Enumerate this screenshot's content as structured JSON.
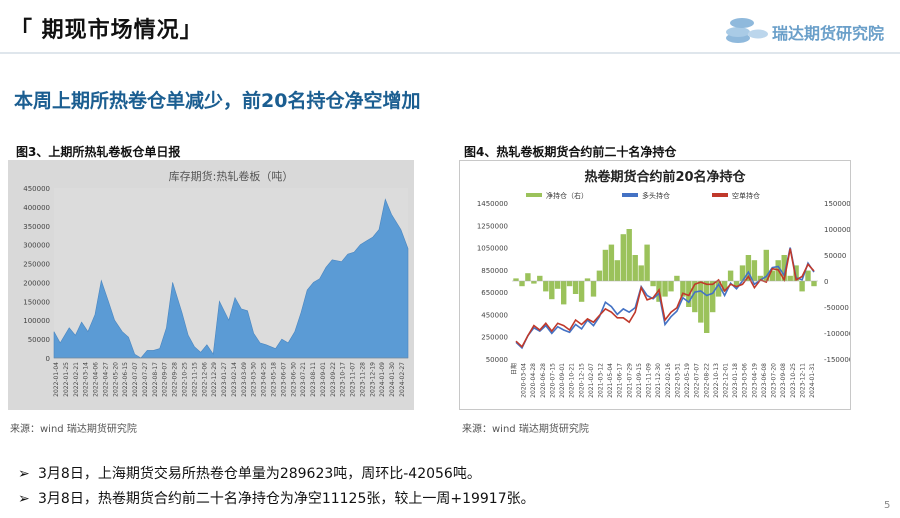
{
  "slide": {
    "title": "「 期现市场情况」",
    "logo_text": "瑞达期货研究院",
    "headline": "本周上期所热卷仓单减少，前20名持仓净空增加",
    "page_number": "5"
  },
  "figures": {
    "left": {
      "caption": "图3、上期所热轧卷板仓单日报",
      "source": "来源：wind   瑞达期货研究院"
    },
    "right": {
      "caption": "图4、热轧卷板期货合约前二十名净持仓",
      "source": "来源：wind   瑞达期货研究院"
    }
  },
  "bullets": [
    {
      "marker": "➢",
      "text": "3月8日，上海期货交易所热卷仓单量为289623吨，周环比-42056吨。"
    },
    {
      "marker": "➢",
      "text": "3月8日，热卷期货合约前二十名净持仓为净空11125张，较上一周+19917张。"
    }
  ],
  "colors": {
    "headline": "#1b5e91",
    "area_fill": "#5b9bd5",
    "net_bar": "#9bc25b",
    "long_line": "#4472c4",
    "short_line": "#c0392b"
  },
  "chart_data": [
    {
      "type": "area",
      "title": "库存期货:热轧卷板（吨）",
      "ylim": [
        0,
        450000
      ],
      "yticks": [
        0,
        50000,
        100000,
        150000,
        200000,
        250000,
        300000,
        350000,
        400000,
        450000
      ],
      "xticks": [
        "2022-01-04",
        "2022-01-25",
        "2022-02-21",
        "2022-03-14",
        "2022-04-06",
        "2022-04-27",
        "2022-05-20",
        "2022-06-15",
        "2022-07-07",
        "2022-07-27",
        "2022-08-17",
        "2022-09-07",
        "2022-09-28",
        "2022-10-25",
        "2022-11-15",
        "2022-12-06",
        "2022-12-29",
        "2023-01-27",
        "2023-02-14",
        "2023-03-09",
        "2023-03-30",
        "2023-04-25",
        "2023-05-18",
        "2023-06-07",
        "2023-06-30",
        "2023-07-21",
        "2023-08-11",
        "2023-09-01",
        "2023-09-22",
        "2023-10-17",
        "2023-11-07",
        "2023-11-28",
        "2023-12-19",
        "2024-01-09",
        "2024-01-30",
        "2024-02-27"
      ],
      "x": [
        "2022-01-04",
        "2022-01-18",
        "2022-02-07",
        "2022-02-21",
        "2022-03-07",
        "2022-03-21",
        "2022-04-06",
        "2022-04-20",
        "2022-05-06",
        "2022-05-20",
        "2022-06-06",
        "2022-06-20",
        "2022-07-04",
        "2022-07-18",
        "2022-08-01",
        "2022-08-15",
        "2022-08-29",
        "2022-09-13",
        "2022-09-27",
        "2022-10-18",
        "2022-11-01",
        "2022-11-15",
        "2022-11-29",
        "2022-12-13",
        "2022-12-27",
        "2023-01-10",
        "2023-01-31",
        "2023-02-14",
        "2023-02-28",
        "2023-03-14",
        "2023-03-28",
        "2023-04-11",
        "2023-04-25",
        "2023-05-16",
        "2023-05-30",
        "2023-06-13",
        "2023-06-28",
        "2023-07-12",
        "2023-07-26",
        "2023-08-09",
        "2023-08-23",
        "2023-09-06",
        "2023-09-20",
        "2023-10-11",
        "2023-10-25",
        "2023-11-08",
        "2023-11-22",
        "2023-12-06",
        "2023-12-20",
        "2024-01-03",
        "2024-01-17",
        "2024-01-31",
        "2024-02-21",
        "2024-03-08"
      ],
      "values": [
        70000,
        40000,
        80000,
        60000,
        95000,
        70000,
        115000,
        205000,
        150000,
        100000,
        70000,
        55000,
        10000,
        0,
        20000,
        20000,
        25000,
        80000,
        200000,
        120000,
        60000,
        30000,
        15000,
        35000,
        10000,
        150000,
        100000,
        160000,
        130000,
        125000,
        65000,
        40000,
        35000,
        25000,
        50000,
        40000,
        70000,
        120000,
        180000,
        200000,
        210000,
        240000,
        260000,
        255000,
        275000,
        280000,
        300000,
        310000,
        320000,
        340000,
        420000,
        380000,
        340000,
        289623
      ]
    },
    {
      "type": "line",
      "title": "热卷期货合约前20名净持仓",
      "y_left_ticks": [
        50000,
        250000,
        450000,
        650000,
        850000,
        1050000,
        1250000,
        1450000
      ],
      "ylim_left": [
        50000,
        1450000
      ],
      "y_right_ticks": [
        -150000,
        -100000,
        -50000,
        0,
        50000,
        100000,
        150000
      ],
      "ylim_right": [
        -150000,
        150000
      ],
      "xticks": [
        "日期",
        "2020-03-04",
        "2020-04-28",
        "2020-06-28",
        "2020-07-15",
        "2020-09-01",
        "2020-10-21",
        "2020-12-15",
        "2021-02-07",
        "2021-03-12",
        "2021-05-04",
        "2021-06-17",
        "2021-07-29",
        "2021-09-15",
        "2021-11-09",
        "2021-12-30",
        "2022-02-16",
        "2022-03-31",
        "2022-05-19",
        "2022-07-07",
        "2022-08-22",
        "2022-10-13",
        "2022-12-01",
        "2023-01-18",
        "2023-03-06",
        "2023-04-19",
        "2023-06-08",
        "2023-07-20",
        "2023-09-08",
        "2023-10-25",
        "2023-12-11",
        "2024-01-31"
      ],
      "series": [
        {
          "name": "净持仓（右）",
          "axis": "right",
          "type": "bar",
          "values": [
            5000,
            -10000,
            15000,
            -5000,
            10000,
            -20000,
            -35000,
            -15000,
            -45000,
            -10000,
            -25000,
            -40000,
            5000,
            -30000,
            20000,
            60000,
            70000,
            40000,
            90000,
            100000,
            50000,
            30000,
            70000,
            -10000,
            -40000,
            -30000,
            -20000,
            10000,
            -30000,
            -50000,
            -60000,
            -80000,
            -100000,
            -60000,
            -30000,
            -20000,
            20000,
            -10000,
            30000,
            50000,
            40000,
            10000,
            60000,
            20000,
            40000,
            50000,
            10000,
            30000,
            -20000,
            20000,
            -10000
          ]
        },
        {
          "name": "多头持仓",
          "axis": "left",
          "type": "line",
          "values": [
            200000,
            150000,
            260000,
            330000,
            300000,
            350000,
            280000,
            340000,
            310000,
            290000,
            360000,
            320000,
            400000,
            350000,
            430000,
            560000,
            520000,
            450000,
            500000,
            470000,
            510000,
            700000,
            620000,
            590000,
            640000,
            360000,
            430000,
            480000,
            600000,
            560000,
            650000,
            660000,
            620000,
            640000,
            720000,
            620000,
            730000,
            680000,
            750000,
            830000,
            720000,
            760000,
            790000,
            870000,
            880000,
            800000,
            1050000,
            780000,
            760000,
            910000,
            830000
          ]
        },
        {
          "name": "空单持仓",
          "axis": "left",
          "type": "line",
          "values": [
            210000,
            160000,
            260000,
            350000,
            310000,
            370000,
            300000,
            370000,
            350000,
            310000,
            400000,
            360000,
            410000,
            380000,
            440000,
            500000,
            470000,
            420000,
            420000,
            380000,
            470000,
            690000,
            580000,
            600000,
            670000,
            400000,
            470000,
            510000,
            640000,
            620000,
            720000,
            740000,
            720000,
            720000,
            760000,
            660000,
            720000,
            700000,
            720000,
            790000,
            690000,
            760000,
            740000,
            860000,
            850000,
            760000,
            1040000,
            760000,
            790000,
            900000,
            840000
          ]
        }
      ]
    }
  ]
}
